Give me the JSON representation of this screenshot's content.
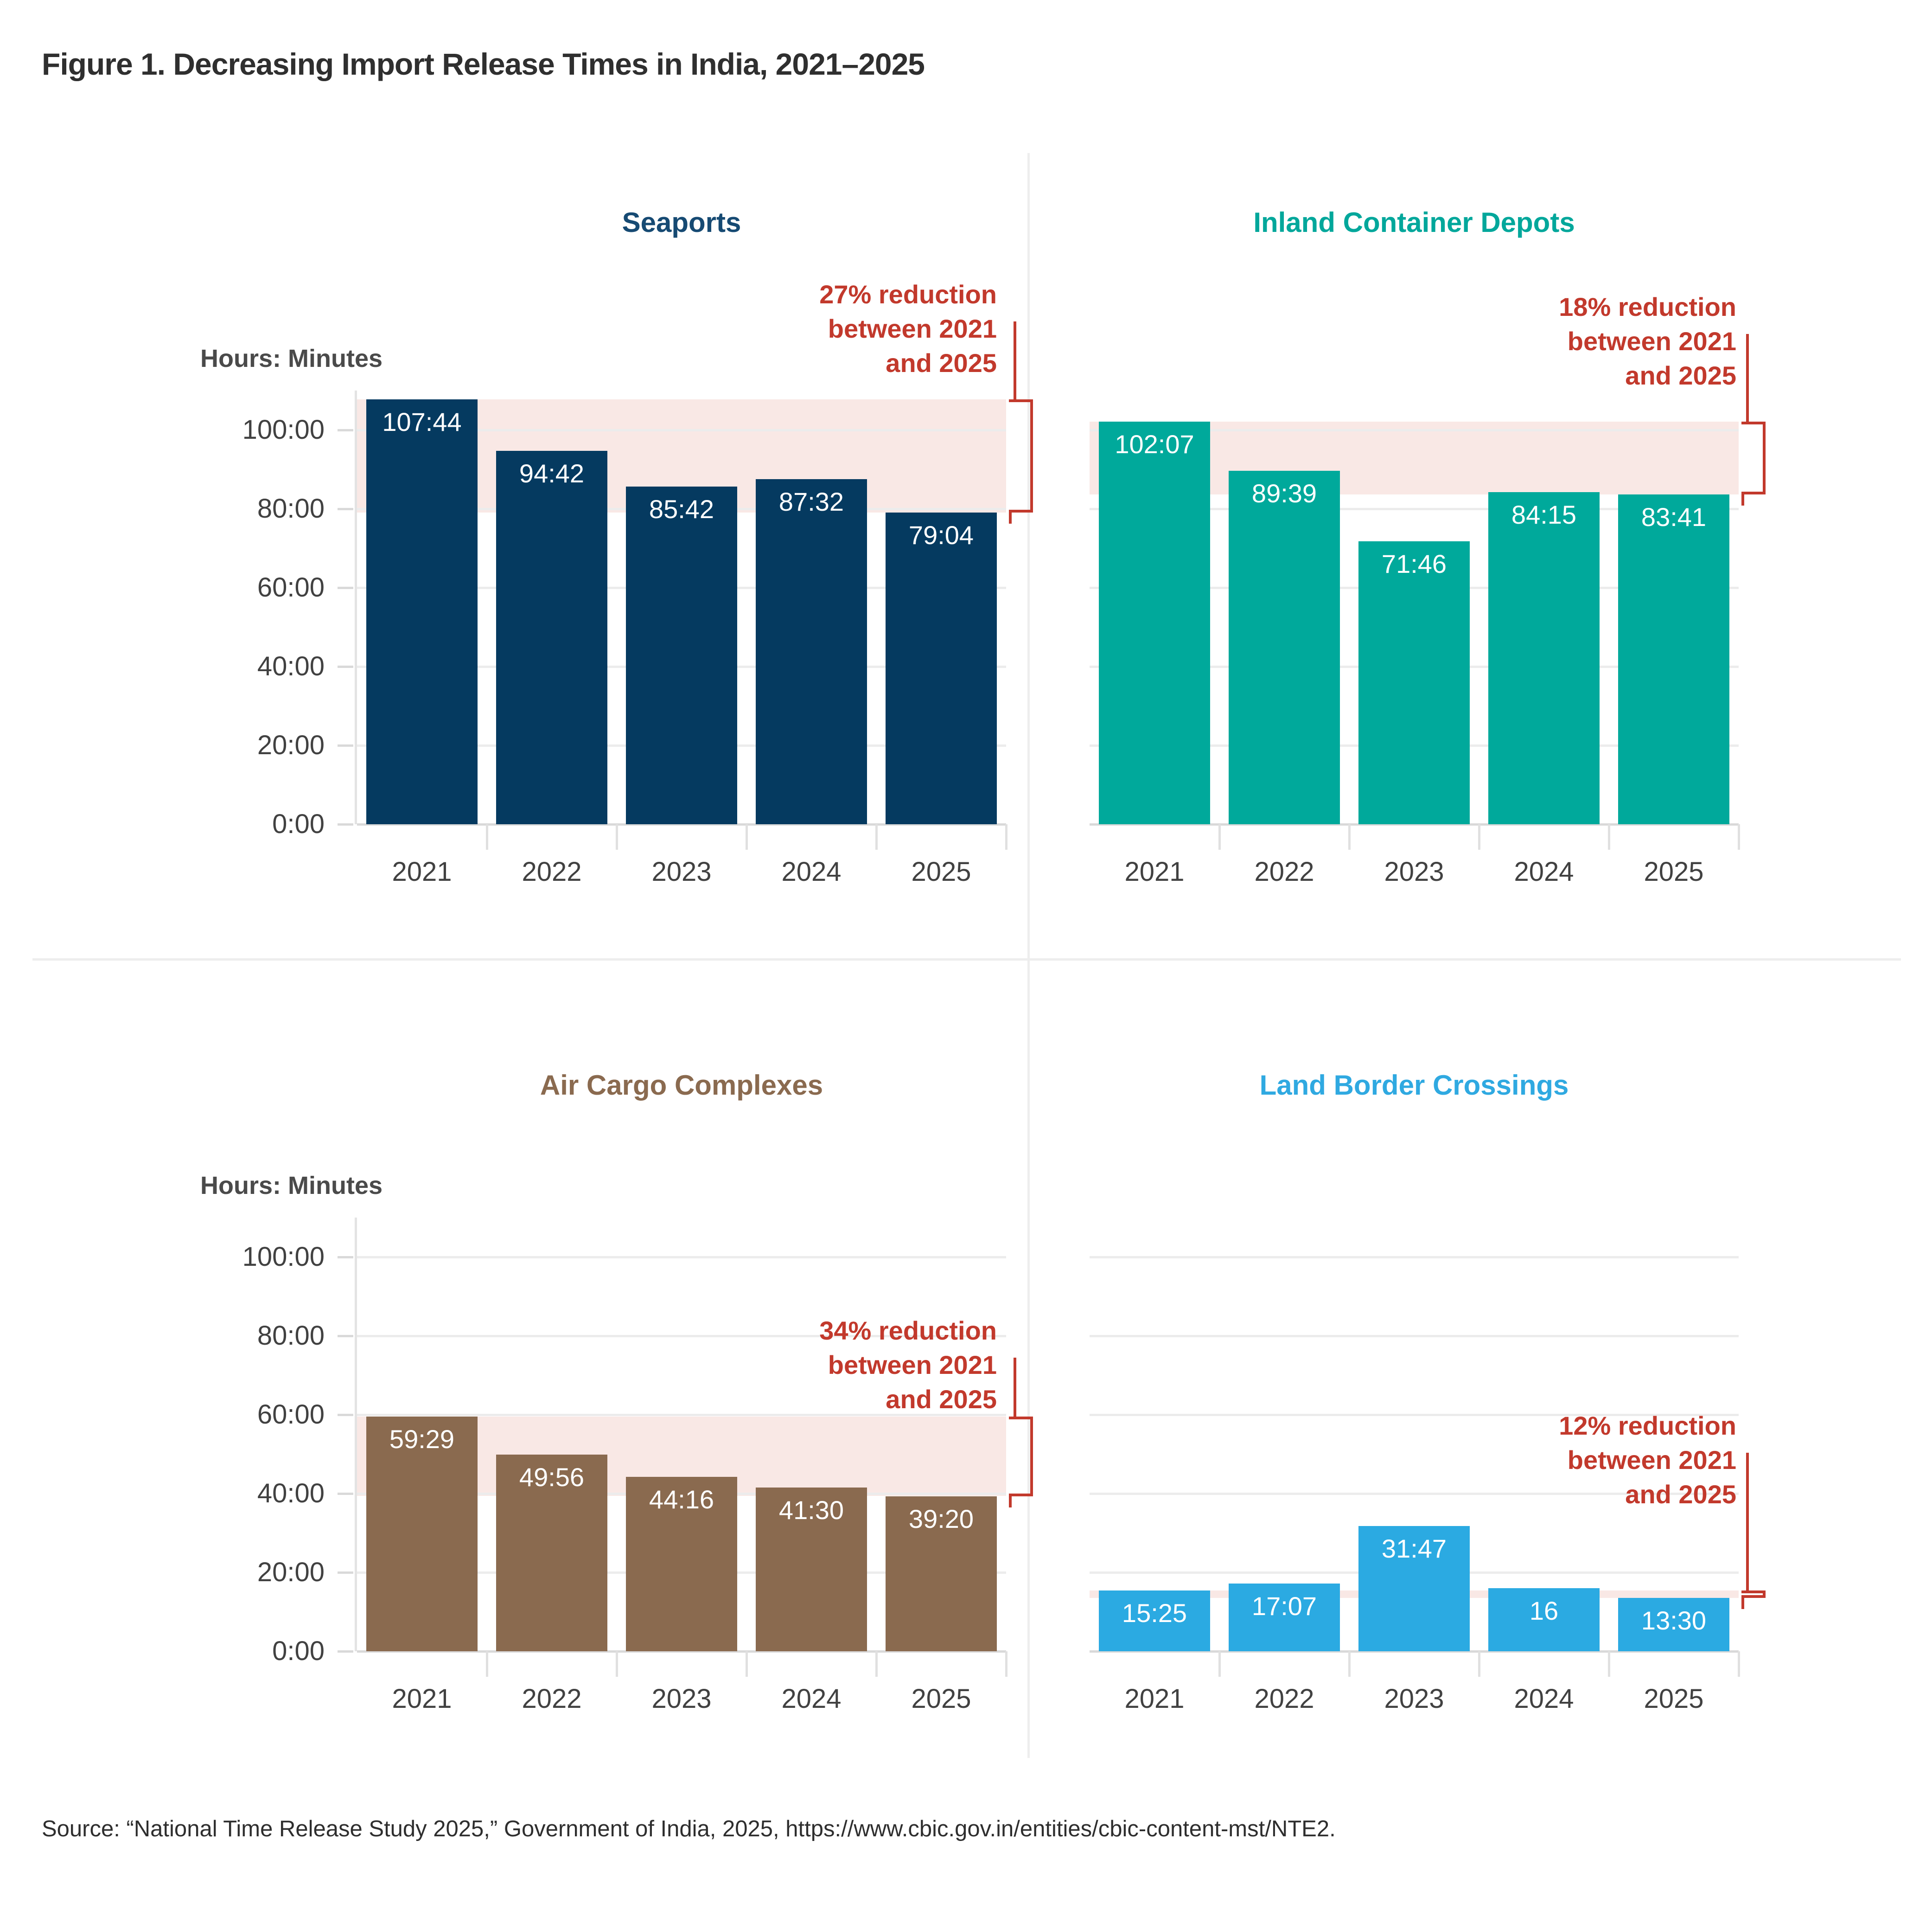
{
  "figure": {
    "title": "Figure 1. Decreasing Import Release Times in India, 2021–2025",
    "source": "Source: “National Time Release Study 2025,” Government of India, 2025, https://www.cbic.gov.in/entities/cbic-content-mst/NTE2.",
    "y_axis_title": "Hours: Minutes",
    "y_tick_labels": [
      "100:00",
      "80:00",
      "60:00",
      "40:00",
      "20:00",
      "0:00"
    ],
    "years": [
      "2021",
      "2022",
      "2023",
      "2024",
      "2025"
    ],
    "colors": {
      "annotation_red": "#c2392c",
      "band_pink": "#f9e8e5",
      "gridline": "#ececec",
      "baseline": "#d9d9d9",
      "axis_text": "#414141",
      "title_text": "#2f2f2f"
    }
  },
  "chart_data": [
    {
      "type": "bar",
      "title": "Seaports",
      "title_color": "#164a73",
      "color": "#053a60",
      "categories": [
        "2021",
        "2022",
        "2023",
        "2024",
        "2025"
      ],
      "value_labels": [
        "107:44",
        "94:42",
        "85:42",
        "87:32",
        "79:04"
      ],
      "values_hours": [
        107.73,
        94.7,
        85.7,
        87.53,
        79.07
      ],
      "unit": "hours:minutes",
      "ylim": [
        0,
        110
      ],
      "grid_step_hours": 20,
      "show_y_axis": true,
      "y_axis_title": "Hours: Minutes",
      "annotation_lines": [
        "27% reduction",
        "between 2021",
        "and 2025"
      ],
      "reduction_percent": 27,
      "band_from_year": "2021",
      "band_to_year": "2025"
    },
    {
      "type": "bar",
      "title": "Inland Container Depots",
      "title_color": "#00a79b",
      "color": "#00a99b",
      "categories": [
        "2021",
        "2022",
        "2023",
        "2024",
        "2025"
      ],
      "value_labels": [
        "102:07",
        "89:39",
        "71:46",
        "84:15",
        "83:41"
      ],
      "values_hours": [
        102.12,
        89.65,
        71.77,
        84.25,
        83.68
      ],
      "unit": "hours:minutes",
      "ylim": [
        0,
        110
      ],
      "grid_step_hours": 20,
      "show_y_axis": false,
      "annotation_lines": [
        "18% reduction",
        "between 2021",
        "and 2025"
      ],
      "reduction_percent": 18,
      "band_from_year": "2021",
      "band_to_year": "2025"
    },
    {
      "type": "bar",
      "title": "Air Cargo Complexes",
      "title_color": "#8a6a4f",
      "color": "#8a6a4f",
      "categories": [
        "2021",
        "2022",
        "2023",
        "2024",
        "2025"
      ],
      "value_labels": [
        "59:29",
        "49:56",
        "44:16",
        "41:30",
        "39:20"
      ],
      "values_hours": [
        59.48,
        49.93,
        44.27,
        41.5,
        39.33
      ],
      "unit": "hours:minutes",
      "ylim": [
        0,
        110
      ],
      "grid_step_hours": 20,
      "show_y_axis": true,
      "y_axis_title": "Hours: Minutes",
      "annotation_lines": [
        "34% reduction",
        "between 2021",
        "and 2025"
      ],
      "reduction_percent": 34,
      "band_from_year": "2021",
      "band_to_year": "2025"
    },
    {
      "type": "bar",
      "title": "Land Border Crossings",
      "title_color": "#2fa9e1",
      "color": "#2baae2",
      "categories": [
        "2021",
        "2022",
        "2023",
        "2024",
        "2025"
      ],
      "value_labels": [
        "15:25",
        "17:07",
        "31:47",
        "16",
        "13:30"
      ],
      "values_hours": [
        15.42,
        17.12,
        31.78,
        16.0,
        13.5
      ],
      "unit": "hours:minutes",
      "ylim": [
        0,
        110
      ],
      "grid_step_hours": 20,
      "show_y_axis": false,
      "annotation_lines": [
        "12% reduction",
        "between 2021",
        "and 2025"
      ],
      "reduction_percent": 12,
      "band_from_year": "2021",
      "band_to_year": "2025"
    }
  ]
}
